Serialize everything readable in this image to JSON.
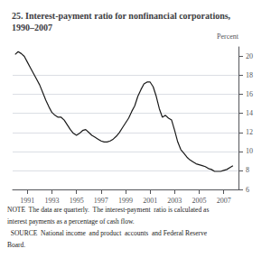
{
  "chart_data": {
    "type": "line",
    "title": "25. Interest-payment ratio for nonfinancial corporations,\n1990–2007",
    "ylabel": "Percent",
    "annotations": [
      "NOTE  The data are quarterly.  The interest-payment  ratio is calculated as",
      "interest payments as a percentage of cash flow.",
      "  SOURCE  National income  and product  accounts  and Federal Reserve",
      "Board."
    ],
    "color": "#1a1a1a",
    "grid": true,
    "xlim": [
      1989.8,
      2008.2
    ],
    "xticks": [
      1991,
      1993,
      1995,
      1997,
      1999,
      2001,
      2003,
      2005,
      2007
    ],
    "ylim": [
      6,
      21
    ],
    "yticks": [
      6,
      8,
      10,
      12,
      14,
      16,
      18,
      20
    ],
    "x": [
      1990.0,
      1990.25,
      1990.5,
      1990.75,
      1991.0,
      1991.25,
      1991.5,
      1991.75,
      1992.0,
      1992.25,
      1992.5,
      1992.75,
      1993.0,
      1993.25,
      1993.5,
      1993.75,
      1994.0,
      1994.25,
      1994.5,
      1994.75,
      1995.0,
      1995.25,
      1995.5,
      1995.75,
      1996.0,
      1996.25,
      1996.5,
      1996.75,
      1997.0,
      1997.25,
      1997.5,
      1997.75,
      1998.0,
      1998.25,
      1998.5,
      1998.75,
      1999.0,
      1999.25,
      1999.5,
      1999.75,
      2000.0,
      2000.25,
      2000.5,
      2000.75,
      2001.0,
      2001.25,
      2001.5,
      2001.75,
      2002.0,
      2002.25,
      2002.5,
      2002.75,
      2003.0,
      2003.25,
      2003.5,
      2003.75,
      2004.0,
      2004.25,
      2004.5,
      2004.75,
      2005.0,
      2005.25,
      2005.5,
      2005.75,
      2006.0,
      2006.25,
      2006.5,
      2006.75,
      2007.0,
      2007.25,
      2007.5,
      2007.75
    ],
    "values": [
      20.2,
      20.5,
      20.3,
      20.0,
      19.4,
      18.8,
      18.2,
      17.6,
      17.0,
      16.2,
      15.4,
      14.7,
      14.1,
      13.8,
      13.6,
      13.6,
      13.3,
      12.8,
      12.3,
      11.9,
      11.7,
      11.9,
      12.2,
      12.3,
      12.0,
      11.7,
      11.5,
      11.3,
      11.1,
      11.0,
      11.0,
      11.1,
      11.3,
      11.6,
      12.0,
      12.5,
      13.0,
      13.5,
      14.2,
      14.8,
      15.8,
      16.5,
      17.1,
      17.3,
      17.3,
      16.8,
      15.8,
      14.5,
      13.6,
      13.8,
      13.5,
      13.3,
      12.2,
      11.0,
      10.2,
      9.8,
      9.4,
      9.1,
      8.9,
      8.7,
      8.6,
      8.5,
      8.4,
      8.2,
      8.1,
      7.9,
      7.9,
      7.9,
      8.0,
      8.1,
      8.3,
      8.5
    ]
  }
}
